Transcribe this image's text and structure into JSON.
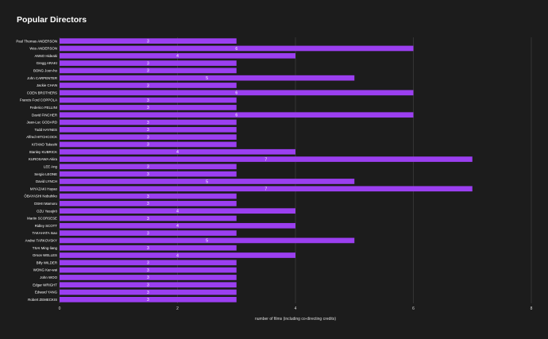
{
  "title": "Popular Directors",
  "colors": {
    "background": "#1c1c1c",
    "bar": "#9b3ff0",
    "grid": "#3a3a3a"
  },
  "chart_data": {
    "type": "bar",
    "orientation": "horizontal",
    "title": "Popular Directors",
    "xlabel": "number of films (including co-directing credits)",
    "ylabel": "",
    "xlim": [
      0,
      8
    ],
    "xticks": [
      0,
      2,
      4,
      6,
      8
    ],
    "grid": "vertical",
    "categories": [
      "Paul Thomas ANDERSON",
      "Wes ANDERSON",
      "ANNO Hideaki",
      "Gregg ARAKI",
      "BONG Joon-ho",
      "John CARPENTER",
      "Jackie CHAN",
      "COEN BROTHERS",
      "Francis Ford COPPOLA",
      "Federico FELLINI",
      "David FINCHER",
      "Jean-Luc GODARD",
      "Todd HAYNES",
      "Alfred HITCHCOCK",
      "KITANO Takeshi",
      "Stanley KUBRICK",
      "KUROSAWA Akira",
      "LEE Ang",
      "Sergio LEONE",
      "David LYNCH",
      "MIYAZAKI Hayao",
      "ŌBAYASHI Nobuhiko",
      "OSHII Mamoru",
      "OZU Yasujirō",
      "Martin SCORSESE",
      "Ridley SCOTT",
      "TAKAHATA Isao",
      "Andrei TARKOVSKY",
      "TSAI Ming-liang",
      "Orson WELLES",
      "Billy WILDER",
      "WONG Kar-wai",
      "John WOO",
      "Edgar WRIGHT",
      "Edward YANG",
      "Robert ZEMECKIS"
    ],
    "values": [
      3,
      6,
      4,
      3,
      3,
      5,
      3,
      6,
      3,
      3,
      6,
      3,
      3,
      3,
      3,
      4,
      7,
      3,
      3,
      5,
      7,
      3,
      3,
      4,
      3,
      4,
      3,
      5,
      3,
      4,
      3,
      3,
      3,
      3,
      3,
      3
    ]
  }
}
